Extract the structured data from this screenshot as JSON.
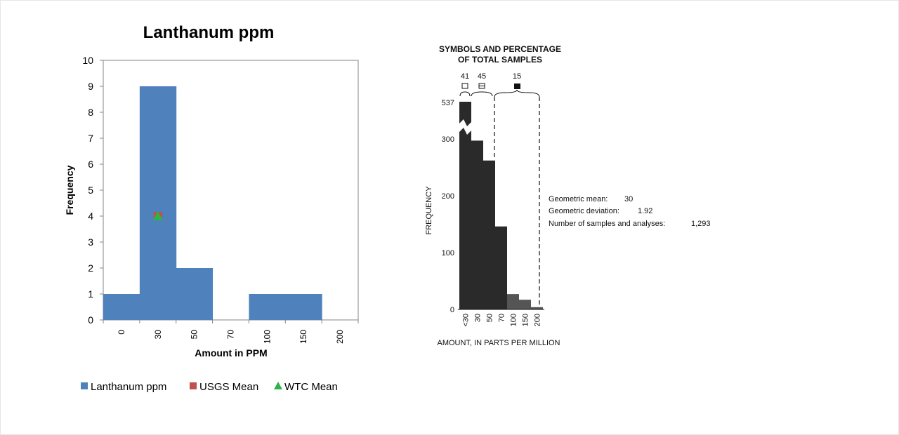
{
  "chart_data": [
    {
      "type": "bar",
      "title": "Lanthanum ppm",
      "xlabel": "Amount in PPM",
      "ylabel": "Frequency",
      "ylim": [
        0,
        10
      ],
      "yticks": [
        "0",
        "1",
        "2",
        "3",
        "4",
        "5",
        "6",
        "7",
        "8",
        "9",
        "10"
      ],
      "categories": [
        "0",
        "30",
        "50",
        "70",
        "100",
        "150",
        "200"
      ],
      "series": [
        {
          "name": "Lanthanum ppm",
          "values": [
            1,
            9,
            2,
            0,
            1,
            1,
            0
          ],
          "color": "#4f81bd"
        }
      ],
      "markers": [
        {
          "name": "USGS Mean",
          "category": "30",
          "value": 4,
          "shape": "square",
          "color": "#c0504d"
        },
        {
          "name": "WTC Mean",
          "category": "30",
          "value": 4,
          "shape": "triangle",
          "color": "#2db34a"
        }
      ],
      "legend": "bottom",
      "grid": false
    },
    {
      "type": "bar",
      "title_lines": [
        "SYMBOLS AND PERCENTAGE",
        "OF TOTAL SAMPLES"
      ],
      "xlabel": "AMOUNT, IN PARTS PER MILLION",
      "ylabel": "FREQUENCY",
      "categories": [
        "<30",
        "30",
        "50",
        "70",
        "100",
        "150",
        "200"
      ],
      "values": [
        537,
        297,
        262,
        146,
        27,
        17,
        4
      ],
      "yticks": [
        "0",
        "100",
        "200",
        "300",
        "537"
      ],
      "ylim": [
        0,
        537
      ],
      "axis_break": true,
      "percentages": [
        {
          "value": "41",
          "symbol": "open-square"
        },
        {
          "value": "45",
          "symbol": "divided-square"
        },
        {
          "value": "15",
          "symbol": "filled-square"
        }
      ],
      "stats": [
        {
          "label": "Geometric mean:",
          "value": "30"
        },
        {
          "label": "Geometric deviation:",
          "value": "1.92"
        },
        {
          "label": "Number of samples and analyses:",
          "value": "1,293"
        }
      ]
    }
  ]
}
